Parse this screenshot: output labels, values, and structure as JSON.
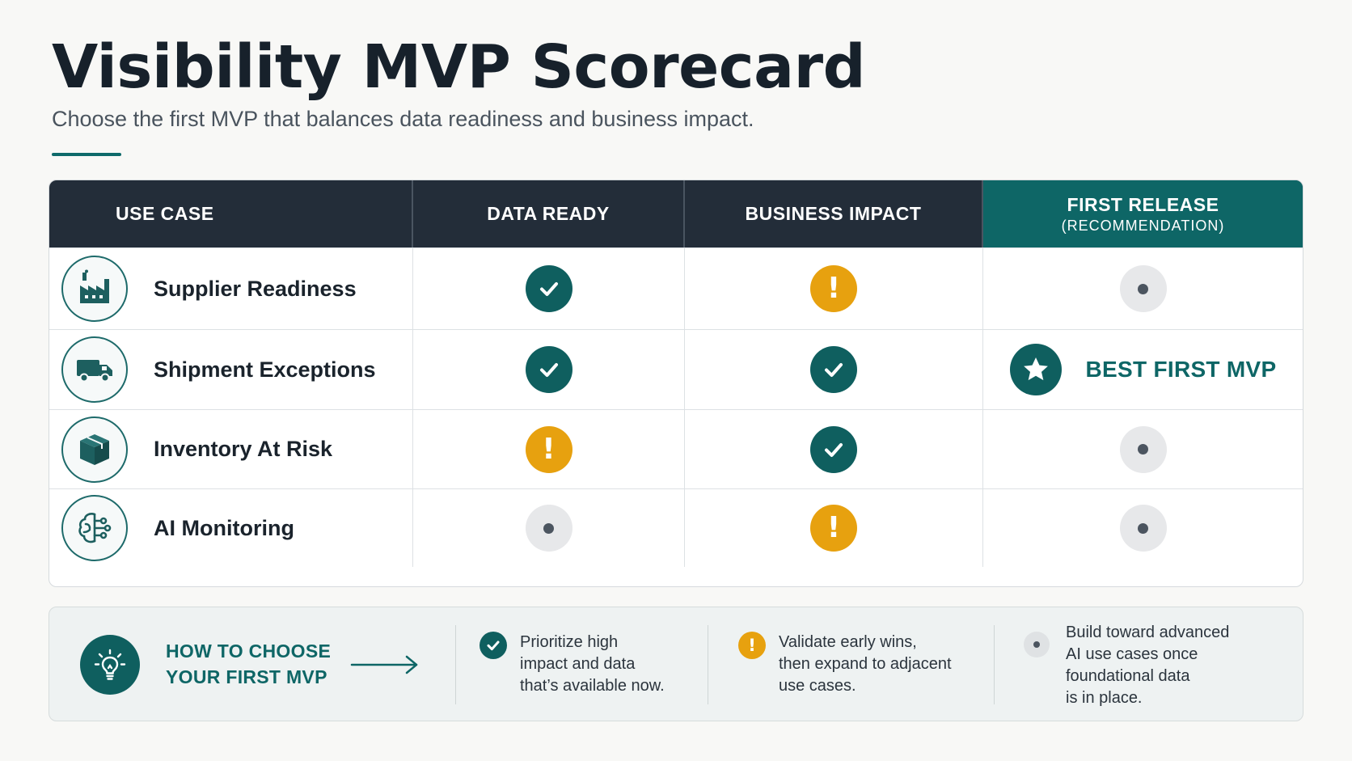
{
  "header": {
    "title": "Visibility MVP Scorecard",
    "subtitle": "Choose the first MVP that balances data readiness and business impact."
  },
  "table": {
    "columns": {
      "use_case": "USE CASE",
      "data_ready": "DATA READY",
      "business_impact": "BUSINESS IMPACT",
      "first_release": "FIRST RELEASE",
      "first_release_sub": "(RECOMMENDATION)"
    },
    "rows": [
      {
        "label": "Supplier Readiness",
        "icon": "factory-icon",
        "data_ready": "check",
        "business_impact": "warning",
        "first_release": "neutral"
      },
      {
        "label": "Shipment Exceptions",
        "icon": "truck-icon",
        "data_ready": "check",
        "business_impact": "check",
        "first_release": "best",
        "first_release_label": "BEST FIRST MVP"
      },
      {
        "label": "Inventory At Risk",
        "icon": "package-icon",
        "data_ready": "warning",
        "business_impact": "check",
        "first_release": "neutral"
      },
      {
        "label": "AI Monitoring",
        "icon": "ai-brain-icon",
        "data_ready": "neutral",
        "business_impact": "warning",
        "first_release": "neutral"
      }
    ]
  },
  "guide": {
    "title_line1": "HOW TO CHOOSE",
    "title_line2": "YOUR FIRST MVP",
    "tips": [
      {
        "icon": "check-icon",
        "text": "Prioritize high\nimpact and data\nthat’s available now."
      },
      {
        "icon": "warning-icon",
        "text": "Validate early wins,\nthen expand to adjacent\nuse cases."
      },
      {
        "icon": "neutral-dot-icon",
        "text": "Build toward advanced\nAI use cases once\nfoundational data\nis in place."
      }
    ]
  },
  "colors": {
    "accent_teal": "#0e6666",
    "header_dark": "#232d39",
    "warning_amber": "#e7a10f",
    "neutral_gray": "#e7e8ea"
  }
}
